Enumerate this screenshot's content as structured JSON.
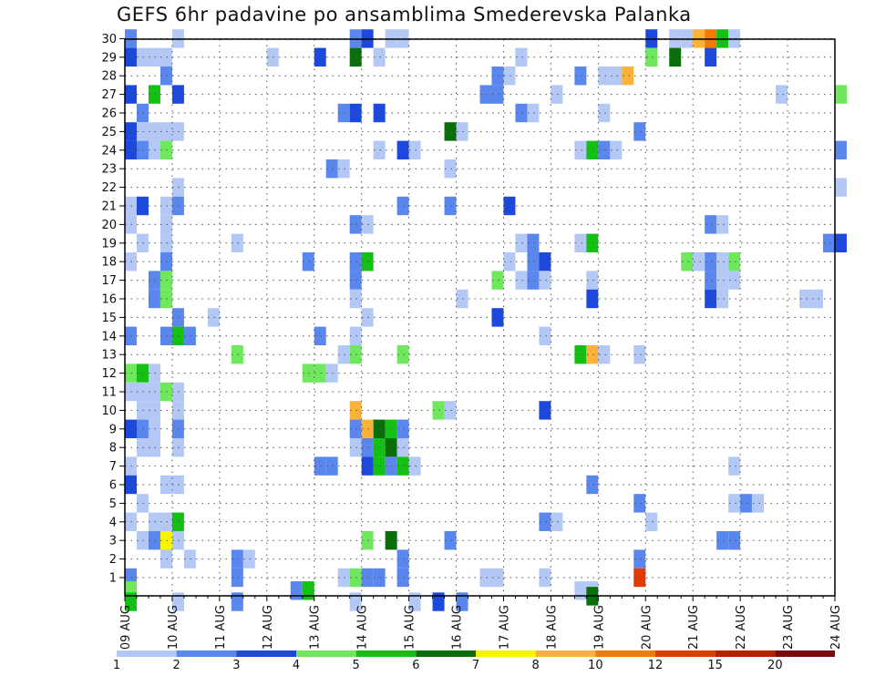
{
  "chart_data": {
    "type": "heatmap",
    "title": "GEFS 6hr padavine po ansamblima Smederevska Palanka",
    "xlabel": "",
    "ylabel": "",
    "grid": true,
    "x_tick_labels": [
      "09 AUG",
      "10 AUG",
      "11 AUG",
      "12 AUG",
      "13 AUG",
      "14 AUG",
      "15 AUG",
      "16 AUG",
      "17 AUG",
      "18 AUG",
      "19 AUG",
      "20 AUG",
      "21 AUG",
      "22 AUG",
      "23 AUG",
      "24 AUG"
    ],
    "y_tick_labels": [
      "1",
      "2",
      "3",
      "4",
      "5",
      "6",
      "7",
      "8",
      "9",
      "10",
      "11",
      "12",
      "13",
      "14",
      "15",
      "16",
      "17",
      "18",
      "19",
      "20",
      "21",
      "22",
      "23",
      "24",
      "25",
      "26",
      "27",
      "28",
      "29",
      "30"
    ],
    "x_unit": "6-hour steps from 09 AUG 00Z",
    "time_steps": 61,
    "members": 30,
    "colorbar": {
      "labels": [
        "1",
        "2",
        "3",
        "4",
        "5",
        "6",
        "7",
        "8",
        "10",
        "12",
        "15",
        "20"
      ],
      "colors": [
        "#b3c8f5",
        "#5a87ee",
        "#1d48de",
        "#6fe85e",
        "#14c014",
        "#0a6e0a",
        "#f5f500",
        "#fbb238",
        "#f47a00",
        "#e33a00",
        "#c01a00",
        "#7a0a0a"
      ]
    },
    "cells": [
      [
        30,
        0.5,
        2
      ],
      [
        30,
        4.5,
        1
      ],
      [
        30,
        19.5,
        2
      ],
      [
        30,
        20.5,
        3
      ],
      [
        30,
        22.5,
        1
      ],
      [
        30,
        23.5,
        1
      ],
      [
        30,
        44.5,
        3
      ],
      [
        30,
        46.5,
        1
      ],
      [
        30,
        47.5,
        1
      ],
      [
        30,
        48.5,
        8
      ],
      [
        30,
        49.5,
        9
      ],
      [
        30,
        50.5,
        5
      ],
      [
        30,
        51.5,
        1
      ],
      [
        29,
        0.5,
        3
      ],
      [
        29,
        1.5,
        1
      ],
      [
        29,
        2.5,
        1
      ],
      [
        29,
        3.5,
        1
      ],
      [
        29,
        12.5,
        1
      ],
      [
        29,
        16.5,
        3
      ],
      [
        29,
        19.5,
        6
      ],
      [
        29,
        21.5,
        1
      ],
      [
        29,
        33.5,
        1
      ],
      [
        29,
        44.5,
        4
      ],
      [
        29,
        46.5,
        6
      ],
      [
        29,
        49.5,
        3
      ],
      [
        28,
        3.5,
        2
      ],
      [
        28,
        31.5,
        2
      ],
      [
        28,
        32.5,
        1
      ],
      [
        28,
        38.5,
        2
      ],
      [
        28,
        40.5,
        1
      ],
      [
        28,
        41.5,
        1
      ],
      [
        28,
        42.5,
        8
      ],
      [
        27,
        0.5,
        3
      ],
      [
        27,
        2.5,
        5
      ],
      [
        27,
        4.5,
        3
      ],
      [
        27,
        30.5,
        2
      ],
      [
        27,
        31.5,
        2
      ],
      [
        27,
        36.5,
        1
      ],
      [
        27,
        55.5,
        1
      ],
      [
        27,
        60.5,
        4
      ],
      [
        26,
        1.5,
        2
      ],
      [
        26,
        18.5,
        2
      ],
      [
        26,
        19.5,
        3
      ],
      [
        26,
        21.5,
        3
      ],
      [
        26,
        33.5,
        2
      ],
      [
        26,
        34.5,
        1
      ],
      [
        26,
        40.5,
        1
      ],
      [
        25,
        0.5,
        3
      ],
      [
        25,
        1.5,
        1
      ],
      [
        25,
        2.5,
        1
      ],
      [
        25,
        3.5,
        1
      ],
      [
        25,
        4.5,
        1
      ],
      [
        25,
        27.5,
        6
      ],
      [
        25,
        28.5,
        1
      ],
      [
        25,
        43.5,
        2
      ],
      [
        24,
        0.5,
        3
      ],
      [
        24,
        1.5,
        2
      ],
      [
        24,
        2.5,
        1
      ],
      [
        24,
        3.5,
        4
      ],
      [
        24,
        21.5,
        1
      ],
      [
        24,
        23.5,
        3
      ],
      [
        24,
        24.5,
        1
      ],
      [
        24,
        38.5,
        1
      ],
      [
        24,
        39.5,
        5
      ],
      [
        24,
        40.5,
        2
      ],
      [
        24,
        41.5,
        1
      ],
      [
        24,
        60.5,
        2
      ],
      [
        23,
        17.5,
        2
      ],
      [
        23,
        18.5,
        1
      ],
      [
        23,
        27.5,
        1
      ],
      [
        22,
        4.5,
        1
      ],
      [
        22,
        60.5,
        1
      ],
      [
        21,
        0.5,
        1
      ],
      [
        21,
        1.5,
        3
      ],
      [
        21,
        3.5,
        1
      ],
      [
        21,
        4.5,
        2
      ],
      [
        21,
        23.5,
        2
      ],
      [
        21,
        27.5,
        2
      ],
      [
        21,
        32.5,
        3
      ],
      [
        20,
        0.5,
        1
      ],
      [
        20,
        3.5,
        1
      ],
      [
        20,
        19.5,
        2
      ],
      [
        20,
        20.5,
        1
      ],
      [
        20,
        49.5,
        2
      ],
      [
        20,
        50.5,
        1
      ],
      [
        19,
        1.5,
        1
      ],
      [
        19,
        3.5,
        1
      ],
      [
        19,
        9.5,
        1
      ],
      [
        19,
        33.5,
        1
      ],
      [
        19,
        34.5,
        2
      ],
      [
        19,
        38.5,
        1
      ],
      [
        19,
        39.5,
        5
      ],
      [
        19,
        59.5,
        2
      ],
      [
        19,
        60.5,
        3
      ],
      [
        18,
        0.5,
        1
      ],
      [
        18,
        3.5,
        2
      ],
      [
        18,
        15.5,
        2
      ],
      [
        18,
        19.5,
        2
      ],
      [
        18,
        20.5,
        5
      ],
      [
        18,
        32.5,
        1
      ],
      [
        18,
        34.5,
        2
      ],
      [
        18,
        35.5,
        3
      ],
      [
        18,
        47.5,
        4
      ],
      [
        18,
        48.5,
        1
      ],
      [
        18,
        49.5,
        2
      ],
      [
        18,
        50.5,
        1
      ],
      [
        18,
        51.5,
        4
      ],
      [
        17,
        2.5,
        2
      ],
      [
        17,
        3.5,
        4
      ],
      [
        17,
        19.5,
        2
      ],
      [
        17,
        31.5,
        4
      ],
      [
        17,
        33.5,
        1
      ],
      [
        17,
        34.5,
        2
      ],
      [
        17,
        35.5,
        1
      ],
      [
        17,
        39.5,
        1
      ],
      [
        17,
        49.5,
        2
      ],
      [
        17,
        50.5,
        1
      ],
      [
        17,
        51.5,
        1
      ],
      [
        16,
        2.5,
        2
      ],
      [
        16,
        3.5,
        4
      ],
      [
        16,
        19.5,
        1
      ],
      [
        16,
        28.5,
        1
      ],
      [
        16,
        39.5,
        3
      ],
      [
        16,
        49.5,
        3
      ],
      [
        16,
        50.5,
        1
      ],
      [
        16,
        57.5,
        1
      ],
      [
        16,
        58.5,
        1
      ],
      [
        15,
        4.5,
        2
      ],
      [
        15,
        7.5,
        1
      ],
      [
        15,
        20.5,
        1
      ],
      [
        15,
        31.5,
        3
      ],
      [
        14,
        0.5,
        2
      ],
      [
        14,
        3.5,
        2
      ],
      [
        14,
        4.5,
        5
      ],
      [
        14,
        5.5,
        2
      ],
      [
        14,
        16.5,
        2
      ],
      [
        14,
        19.5,
        1
      ],
      [
        14,
        35.5,
        1
      ],
      [
        13,
        9.5,
        4
      ],
      [
        13,
        18.5,
        1
      ],
      [
        13,
        19.5,
        4
      ],
      [
        13,
        23.5,
        4
      ],
      [
        13,
        38.5,
        5
      ],
      [
        13,
        39.5,
        8
      ],
      [
        13,
        40.5,
        1
      ],
      [
        13,
        43.5,
        1
      ],
      [
        12,
        0.5,
        4
      ],
      [
        12,
        1.5,
        5
      ],
      [
        12,
        2.5,
        1
      ],
      [
        12,
        15.5,
        4
      ],
      [
        12,
        16.5,
        4
      ],
      [
        12,
        17.5,
        1
      ],
      [
        11,
        0.5,
        1
      ],
      [
        11,
        1.5,
        1
      ],
      [
        11,
        2.5,
        1
      ],
      [
        11,
        3.5,
        4
      ],
      [
        11,
        4.5,
        1
      ],
      [
        10,
        1.5,
        1
      ],
      [
        10,
        2.5,
        1
      ],
      [
        10,
        4.5,
        1
      ],
      [
        10,
        19.5,
        8
      ],
      [
        10,
        26.5,
        4
      ],
      [
        10,
        27.5,
        1
      ],
      [
        10,
        35.5,
        3
      ],
      [
        9,
        0.5,
        3
      ],
      [
        9,
        1.5,
        2
      ],
      [
        9,
        2.5,
        1
      ],
      [
        9,
        4.5,
        2
      ],
      [
        9,
        19.5,
        2
      ],
      [
        9,
        20.5,
        8
      ],
      [
        9,
        21.5,
        6
      ],
      [
        9,
        22.5,
        5
      ],
      [
        9,
        23.5,
        2
      ],
      [
        8,
        1.5,
        1
      ],
      [
        8,
        2.5,
        1
      ],
      [
        8,
        4.5,
        1
      ],
      [
        8,
        19.5,
        1
      ],
      [
        8,
        20.5,
        2
      ],
      [
        8,
        21.5,
        5
      ],
      [
        8,
        22.5,
        6
      ],
      [
        8,
        23.5,
        1
      ],
      [
        7,
        0.5,
        1
      ],
      [
        7,
        16.5,
        2
      ],
      [
        7,
        17.5,
        2
      ],
      [
        7,
        20.5,
        3
      ],
      [
        7,
        21.5,
        5
      ],
      [
        7,
        22.5,
        2
      ],
      [
        7,
        23.5,
        5
      ],
      [
        7,
        24.5,
        1
      ],
      [
        7,
        51.5,
        1
      ],
      [
        6,
        0.5,
        3
      ],
      [
        6,
        3.5,
        1
      ],
      [
        6,
        4.5,
        1
      ],
      [
        6,
        39.5,
        2
      ],
      [
        5,
        1.5,
        1
      ],
      [
        5,
        43.5,
        2
      ],
      [
        5,
        51.5,
        1
      ],
      [
        5,
        52.5,
        2
      ],
      [
        5,
        53.5,
        1
      ],
      [
        4,
        0.5,
        1
      ],
      [
        4,
        2.5,
        1
      ],
      [
        4,
        3.5,
        1
      ],
      [
        4,
        4.5,
        5
      ],
      [
        4,
        35.5,
        2
      ],
      [
        4,
        36.5,
        1
      ],
      [
        4,
        44.5,
        1
      ],
      [
        3,
        1.5,
        1
      ],
      [
        3,
        2.5,
        2
      ],
      [
        3,
        3.5,
        7
      ],
      [
        3,
        4.5,
        1
      ],
      [
        3,
        20.5,
        4
      ],
      [
        3,
        22.5,
        6
      ],
      [
        3,
        27.5,
        2
      ],
      [
        3,
        50.5,
        2
      ],
      [
        3,
        51.5,
        2
      ],
      [
        2,
        3.5,
        1
      ],
      [
        2,
        5.5,
        1
      ],
      [
        2,
        9.5,
        2
      ],
      [
        2,
        10.5,
        1
      ],
      [
        2,
        23.5,
        2
      ],
      [
        2,
        43.5,
        2
      ],
      [
        1,
        0.5,
        2
      ],
      [
        1,
        9.5,
        2
      ],
      [
        1,
        18.5,
        1
      ],
      [
        1,
        19.5,
        4
      ],
      [
        1,
        20.5,
        2
      ],
      [
        1,
        21.5,
        2
      ],
      [
        1,
        23.5,
        2
      ],
      [
        1,
        30.5,
        1
      ],
      [
        1,
        31.5,
        1
      ],
      [
        1,
        35.5,
        1
      ],
      [
        1,
        43.5,
        10
      ],
      [
        0.3,
        0.5,
        4
      ],
      [
        0.3,
        14.5,
        2
      ],
      [
        0.3,
        15.5,
        5
      ],
      [
        0.3,
        38.5,
        1
      ],
      [
        0.3,
        39.5,
        1
      ],
      [
        -0.3,
        0.5,
        5
      ],
      [
        -0.3,
        4.5,
        1
      ],
      [
        -0.3,
        9.5,
        2
      ],
      [
        -0.3,
        19.5,
        1
      ],
      [
        -0.3,
        24.5,
        1
      ],
      [
        -0.3,
        26.5,
        3
      ],
      [
        -0.3,
        28.5,
        2
      ]
    ],
    "extra_cells": [
      [
        0,
        39.5,
        6
      ]
    ]
  }
}
